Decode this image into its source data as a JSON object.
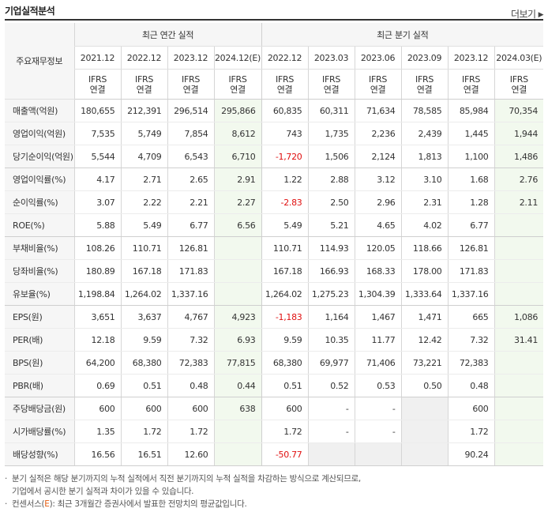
{
  "title": "기업실적분석",
  "more_label": "더보기",
  "header": {
    "stub_label": "주요재무정보",
    "annual_label": "최근 연간 실적",
    "quarterly_label": "최근 분기 실적",
    "periods": [
      "2021.12",
      "2022.12",
      "2023.12",
      "2024.12(E)",
      "2022.12",
      "2023.03",
      "2023.06",
      "2023.09",
      "2023.12",
      "2024.03(E)"
    ],
    "ifrs_line1": "IFRS",
    "ifrs_line2": "연결"
  },
  "rows": [
    {
      "label": "매출액(억원)",
      "values": [
        "180,655",
        "212,391",
        "296,514",
        "295,866",
        "60,835",
        "60,311",
        "71,634",
        "78,585",
        "85,984",
        "70,354"
      ]
    },
    {
      "label": "영업이익(억원)",
      "values": [
        "7,535",
        "5,749",
        "7,854",
        "8,612",
        "743",
        "1,735",
        "2,236",
        "2,439",
        "1,445",
        "1,944"
      ]
    },
    {
      "label": "당기순이익(억원)",
      "values": [
        "5,544",
        "4,709",
        "6,543",
        "6,710",
        "-1,720",
        "1,506",
        "2,124",
        "1,813",
        "1,100",
        "1,486"
      ]
    },
    {
      "label": "영업이익률(%)",
      "values": [
        "4.17",
        "2.71",
        "2.65",
        "2.91",
        "1.22",
        "2.88",
        "3.12",
        "3.10",
        "1.68",
        "2.76"
      ]
    },
    {
      "label": "순이익률(%)",
      "values": [
        "3.07",
        "2.22",
        "2.21",
        "2.27",
        "-2.83",
        "2.50",
        "2.96",
        "2.31",
        "1.28",
        "2.11"
      ]
    },
    {
      "label": "ROE(%)",
      "values": [
        "5.88",
        "5.49",
        "6.77",
        "6.56",
        "5.49",
        "5.21",
        "4.65",
        "4.02",
        "6.77",
        ""
      ]
    },
    {
      "label": "부채비율(%)",
      "values": [
        "108.26",
        "110.71",
        "126.81",
        "",
        "110.71",
        "114.93",
        "120.05",
        "118.66",
        "126.81",
        ""
      ]
    },
    {
      "label": "당좌비율(%)",
      "values": [
        "180.89",
        "167.18",
        "171.83",
        "",
        "167.18",
        "166.93",
        "168.33",
        "178.00",
        "171.83",
        ""
      ]
    },
    {
      "label": "유보율(%)",
      "values": [
        "1,198.84",
        "1,264.02",
        "1,337.16",
        "",
        "1,264.02",
        "1,275.23",
        "1,304.39",
        "1,333.64",
        "1,337.16",
        ""
      ]
    },
    {
      "label": "EPS(원)",
      "values": [
        "3,651",
        "3,637",
        "4,767",
        "4,923",
        "-1,183",
        "1,164",
        "1,467",
        "1,471",
        "665",
        "1,086"
      ]
    },
    {
      "label": "PER(배)",
      "values": [
        "12.18",
        "9.59",
        "7.32",
        "6.93",
        "9.59",
        "10.35",
        "11.77",
        "12.42",
        "7.32",
        "31.41"
      ]
    },
    {
      "label": "BPS(원)",
      "values": [
        "64,200",
        "68,380",
        "72,383",
        "77,815",
        "68,380",
        "69,977",
        "71,406",
        "73,221",
        "72,383",
        ""
      ]
    },
    {
      "label": "PBR(배)",
      "values": [
        "0.69",
        "0.51",
        "0.48",
        "0.44",
        "0.51",
        "0.52",
        "0.53",
        "0.50",
        "0.48",
        ""
      ]
    },
    {
      "label": "주당배당금(원)",
      "values": [
        "600",
        "600",
        "600",
        "638",
        "600",
        "-",
        "-",
        "",
        "600",
        ""
      ]
    },
    {
      "label": "시가배당률(%)",
      "values": [
        "1.35",
        "1.72",
        "1.72",
        "",
        "1.72",
        "-",
        "-",
        "",
        "1.72",
        ""
      ]
    },
    {
      "label": "배당성향(%)",
      "values": [
        "16.56",
        "16.51",
        "12.60",
        "",
        "-50.77",
        "",
        "",
        "",
        "90.24",
        ""
      ]
    }
  ],
  "notes": {
    "bullet": "·",
    "line1": "분기 실적은 해당 분기까지의 누적 실적에서 직전 분기까지의 누적 실적을 차감하는 방식으로 계산되므로,",
    "line2": "기업에서 공시한 분기 실적과 차이가 있을 수 있습니다.",
    "line3_prefix": "컨센서스(",
    "line3_e": "E",
    "line3_suffix": "): 최근 3개월간 증권사에서 발표한 전망치의 평균값입니다."
  },
  "colors": {
    "estimate_bg": "#f2f9ee",
    "ifrs_text": "#e55c10",
    "negative": "#e01010"
  }
}
